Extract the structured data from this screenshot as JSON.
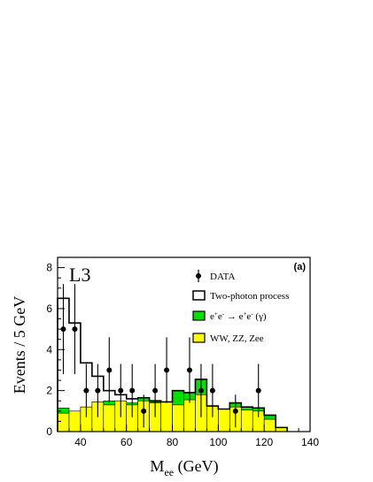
{
  "chart_data": {
    "type": "bar",
    "experiment_label": "L3",
    "panel_label": "(a)",
    "xlabel_main": "M",
    "xlabel_sub": "ee",
    "xlabel_unit": " (GeV)",
    "ylabel": "Events / 5 GeV",
    "xlim": [
      30,
      140
    ],
    "ylim": [
      0,
      8.5
    ],
    "x_ticks": [
      40,
      60,
      80,
      100,
      120,
      140
    ],
    "y_ticks": [
      0,
      2,
      4,
      6,
      8
    ],
    "bin_edges": [
      30,
      35,
      40,
      45,
      50,
      55,
      60,
      65,
      70,
      75,
      80,
      85,
      90,
      95,
      100,
      105,
      110,
      115,
      120,
      125,
      130
    ],
    "series": [
      {
        "name": "WW, ZZ, Zee",
        "style": "filled",
        "color": "#ffff00",
        "values": [
          0.9,
          1.0,
          1.2,
          1.45,
          1.3,
          1.5,
          1.3,
          1.5,
          1.4,
          1.45,
          1.3,
          1.55,
          1.8,
          1.25,
          1.1,
          1.2,
          1.05,
          1.0,
          0.6,
          0.2,
          0.0
        ]
      },
      {
        "name": "e⁺e⁻ → e⁺e⁻ (γ)",
        "style": "filled",
        "color": "#00e000",
        "values": [
          1.15,
          1.0,
          1.2,
          1.45,
          1.5,
          1.5,
          1.4,
          1.65,
          1.45,
          1.45,
          2.0,
          1.9,
          2.55,
          1.25,
          1.1,
          1.4,
          1.2,
          1.15,
          0.8,
          0.2,
          0.0
        ]
      },
      {
        "name": "Two-photon process",
        "style": "outline",
        "color": "#000000",
        "values": [
          6.5,
          5.3,
          3.35,
          2.7,
          2.0,
          1.8,
          1.6,
          1.65,
          1.5,
          1.45,
          2.0,
          1.9,
          2.55,
          1.25,
          1.1,
          1.4,
          1.2,
          1.15,
          0.8,
          0.2,
          0.0
        ]
      },
      {
        "name": "DATA",
        "style": "points",
        "color": "#000000",
        "x": [
          32.5,
          37.5,
          42.5,
          47.5,
          52.5,
          57.5,
          62.5,
          67.5,
          72.5,
          77.5,
          87.5,
          92.5,
          97.5,
          107.5,
          117.5
        ],
        "y": [
          5,
          5,
          2,
          2,
          3,
          2,
          2,
          1,
          2,
          3,
          3,
          2,
          2,
          1,
          2
        ],
        "err_low": [
          2.2,
          2.2,
          1.3,
          1.3,
          1.6,
          1.3,
          1.3,
          0.8,
          1.3,
          1.6,
          1.6,
          1.3,
          1.3,
          0.8,
          1.3
        ],
        "err_high": [
          2.2,
          2.2,
          1.3,
          1.3,
          1.6,
          1.3,
          1.3,
          0.8,
          1.3,
          1.6,
          1.6,
          1.3,
          1.3,
          0.8,
          1.3
        ]
      }
    ],
    "legend": {
      "placement": "top-right",
      "entries": [
        {
          "label": "DATA",
          "marker": "point"
        },
        {
          "label": "Two-photon process",
          "marker": "outline-box"
        },
        {
          "label_html_parts": [
            "e",
            "+",
            "e",
            "-",
            " → e",
            "+",
            "e",
            "-",
            " (γ)"
          ],
          "label": "e⁺e⁻ → e⁺e⁻ (γ)",
          "marker": "green-box"
        },
        {
          "label": "WW, ZZ, Zee",
          "marker": "yellow-box"
        }
      ]
    }
  }
}
